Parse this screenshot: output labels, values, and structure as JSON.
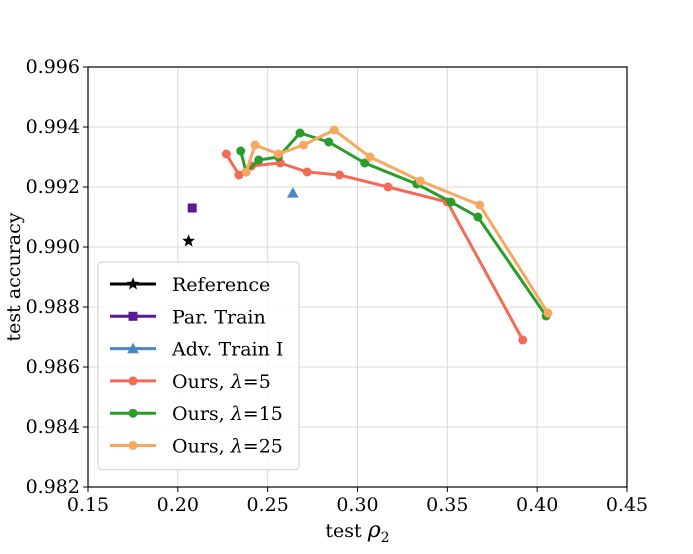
{
  "chart_data": {
    "type": "line",
    "xlabel": "test ρ2",
    "xlabel_parts": {
      "base": "test ",
      "symbol": "ρ",
      "sub": "2"
    },
    "ylabel": "test accuracy",
    "xlim": [
      0.15,
      0.45
    ],
    "ylim": [
      0.982,
      0.996
    ],
    "xticks": [
      0.15,
      0.2,
      0.25,
      0.3,
      0.35,
      0.4,
      0.45
    ],
    "xtick_labels": [
      "0.15",
      "0.20",
      "0.25",
      "0.30",
      "0.35",
      "0.40",
      "0.45"
    ],
    "yticks": [
      0.982,
      0.984,
      0.986,
      0.988,
      0.99,
      0.992,
      0.994,
      0.996
    ],
    "ytick_labels": [
      "0.982",
      "0.984",
      "0.986",
      "0.988",
      "0.990",
      "0.992",
      "0.994",
      "0.996"
    ],
    "grid": true,
    "legend_position": "lower-left",
    "series": [
      {
        "name": "Reference",
        "legend_parts": {
          "text": "Reference"
        },
        "color": "#000000",
        "marker": "star",
        "points": [
          [
            0.206,
            0.9902
          ]
        ]
      },
      {
        "name": "Par. Train",
        "legend_parts": {
          "text": "Par. Train"
        },
        "color": "#5b1a96",
        "marker": "square",
        "points": [
          [
            0.208,
            0.9913
          ]
        ]
      },
      {
        "name": "Adv. Train I",
        "legend_parts": {
          "text": "Adv. Train I"
        },
        "color": "#4a86c5",
        "marker": "triangle",
        "points": [
          [
            0.264,
            0.9918
          ]
        ]
      },
      {
        "name": "Ours, λ=5",
        "legend_parts": {
          "text": "Ours, ",
          "symbol": "λ",
          "rest": "=5"
        },
        "color": "#f46a55",
        "marker": "circle",
        "points": [
          [
            0.227,
            0.9931
          ],
          [
            0.234,
            0.9924
          ],
          [
            0.241,
            0.9927
          ],
          [
            0.257,
            0.9928
          ],
          [
            0.272,
            0.9925
          ],
          [
            0.29,
            0.9924
          ],
          [
            0.317,
            0.992
          ],
          [
            0.35,
            0.9915
          ],
          [
            0.392,
            0.9869
          ]
        ]
      },
      {
        "name": "Ours, λ=15",
        "legend_parts": {
          "text": "Ours, ",
          "symbol": "λ",
          "rest": "=15"
        },
        "color": "#2a9c2a",
        "marker": "circle",
        "points": [
          [
            0.235,
            0.9932
          ],
          [
            0.238,
            0.9925
          ],
          [
            0.245,
            0.9929
          ],
          [
            0.256,
            0.993
          ],
          [
            0.268,
            0.9938
          ],
          [
            0.284,
            0.9935
          ],
          [
            0.304,
            0.9928
          ],
          [
            0.333,
            0.9921
          ],
          [
            0.352,
            0.9915
          ],
          [
            0.367,
            0.991
          ],
          [
            0.405,
            0.9877
          ]
        ]
      },
      {
        "name": "Ours, λ=25",
        "legend_parts": {
          "text": "Ours, ",
          "symbol": "λ",
          "rest": "=25"
        },
        "color": "#f6a95e",
        "marker": "circle",
        "points": [
          [
            0.238,
            0.9925
          ],
          [
            0.243,
            0.9934
          ],
          [
            0.256,
            0.9931
          ],
          [
            0.27,
            0.9934
          ],
          [
            0.287,
            0.9939
          ],
          [
            0.307,
            0.993
          ],
          [
            0.335,
            0.9922
          ],
          [
            0.368,
            0.9914
          ],
          [
            0.406,
            0.9878
          ]
        ]
      }
    ]
  }
}
